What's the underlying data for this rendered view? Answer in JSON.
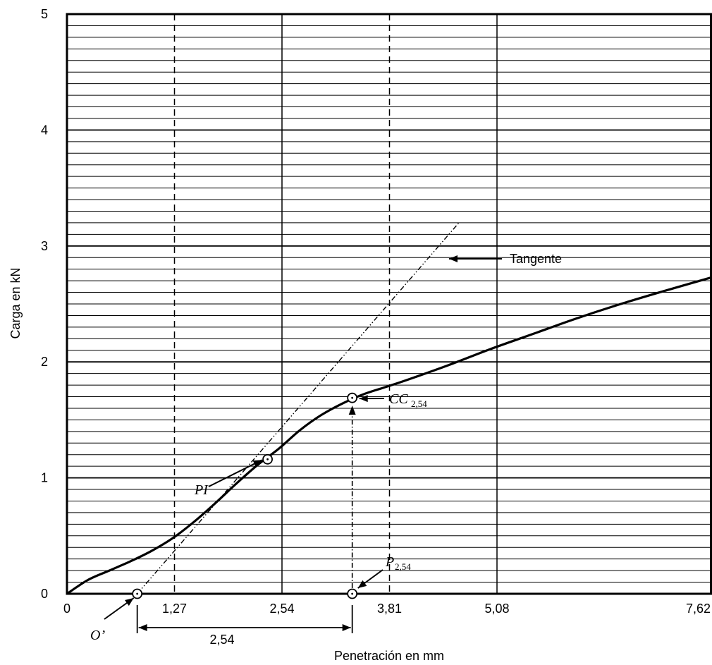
{
  "chart_data": {
    "type": "line",
    "xlabel": "Penetración en mm",
    "ylabel": "Carga en kN",
    "xlim": [
      0,
      7.62
    ],
    "ylim": [
      0,
      5
    ],
    "x_ticks": [
      {
        "value": 0,
        "label": "0"
      },
      {
        "value": 1.27,
        "label": "1,27"
      },
      {
        "value": 2.54,
        "label": "2,54"
      },
      {
        "value": 3.81,
        "label": "3,81"
      },
      {
        "value": 5.08,
        "label": "5,08"
      },
      {
        "value": 7.62,
        "label": "7,62"
      }
    ],
    "y_ticks": [
      {
        "value": 0,
        "label": "0"
      },
      {
        "value": 1,
        "label": "1"
      },
      {
        "value": 2,
        "label": "2"
      },
      {
        "value": 3,
        "label": "3"
      },
      {
        "value": 4,
        "label": "4"
      },
      {
        "value": 5,
        "label": "5"
      }
    ],
    "minor_y_step": 0.1,
    "grid": true,
    "major_vertical_lines": [
      2.54,
      5.08
    ],
    "dashed_vertical_lines": [
      1.27,
      3.81
    ],
    "series": [
      {
        "x": [
          0,
          0.25,
          0.5,
          0.75,
          1.0,
          1.25,
          1.5,
          1.75,
          2.0,
          2.25,
          2.5,
          2.75,
          3.0,
          3.25,
          3.5,
          3.75,
          4.0,
          4.5,
          5.0,
          5.5,
          6.0,
          6.5,
          7.0,
          7.62
        ],
        "y": [
          0,
          0.12,
          0.2,
          0.28,
          0.37,
          0.48,
          0.62,
          0.78,
          0.95,
          1.11,
          1.25,
          1.41,
          1.54,
          1.64,
          1.72,
          1.78,
          1.84,
          1.97,
          2.11,
          2.24,
          2.37,
          2.49,
          2.6,
          2.73
        ]
      }
    ],
    "tangent": {
      "from": [
        0.83,
        0
      ],
      "to": [
        4.63,
        3.2
      ]
    },
    "annotations": {
      "tangent_label": "Tangente",
      "pi_label": "PI",
      "o_label": "O’",
      "cc_label": "CC",
      "cc_sub": "2,54",
      "p_label": "P",
      "p_sub": "2,54",
      "dimension_label": "2,54"
    },
    "points": {
      "o_prime": [
        0.83,
        0
      ],
      "pi": [
        2.37,
        1.16
      ],
      "cc": [
        3.37,
        1.69
      ],
      "p": [
        3.37,
        0
      ]
    }
  }
}
